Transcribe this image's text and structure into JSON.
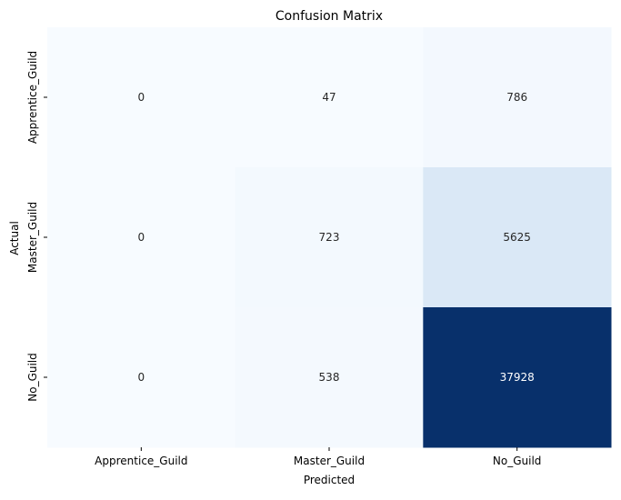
{
  "chart_data": {
    "type": "heatmap",
    "title": "Confusion Matrix",
    "xlabel": "Predicted",
    "ylabel": "Actual",
    "x_categories": [
      "Apprentice_Guild",
      "Master_Guild",
      "No_Guild"
    ],
    "y_categories": [
      "Apprentice_Guild",
      "Master_Guild",
      "No_Guild"
    ],
    "values": [
      [
        0,
        47,
        786
      ],
      [
        0,
        723,
        5625
      ],
      [
        0,
        538,
        37928
      ]
    ],
    "colormap": "Blues",
    "color_range": [
      0,
      37928
    ],
    "colorbar": false,
    "annotations": true
  }
}
